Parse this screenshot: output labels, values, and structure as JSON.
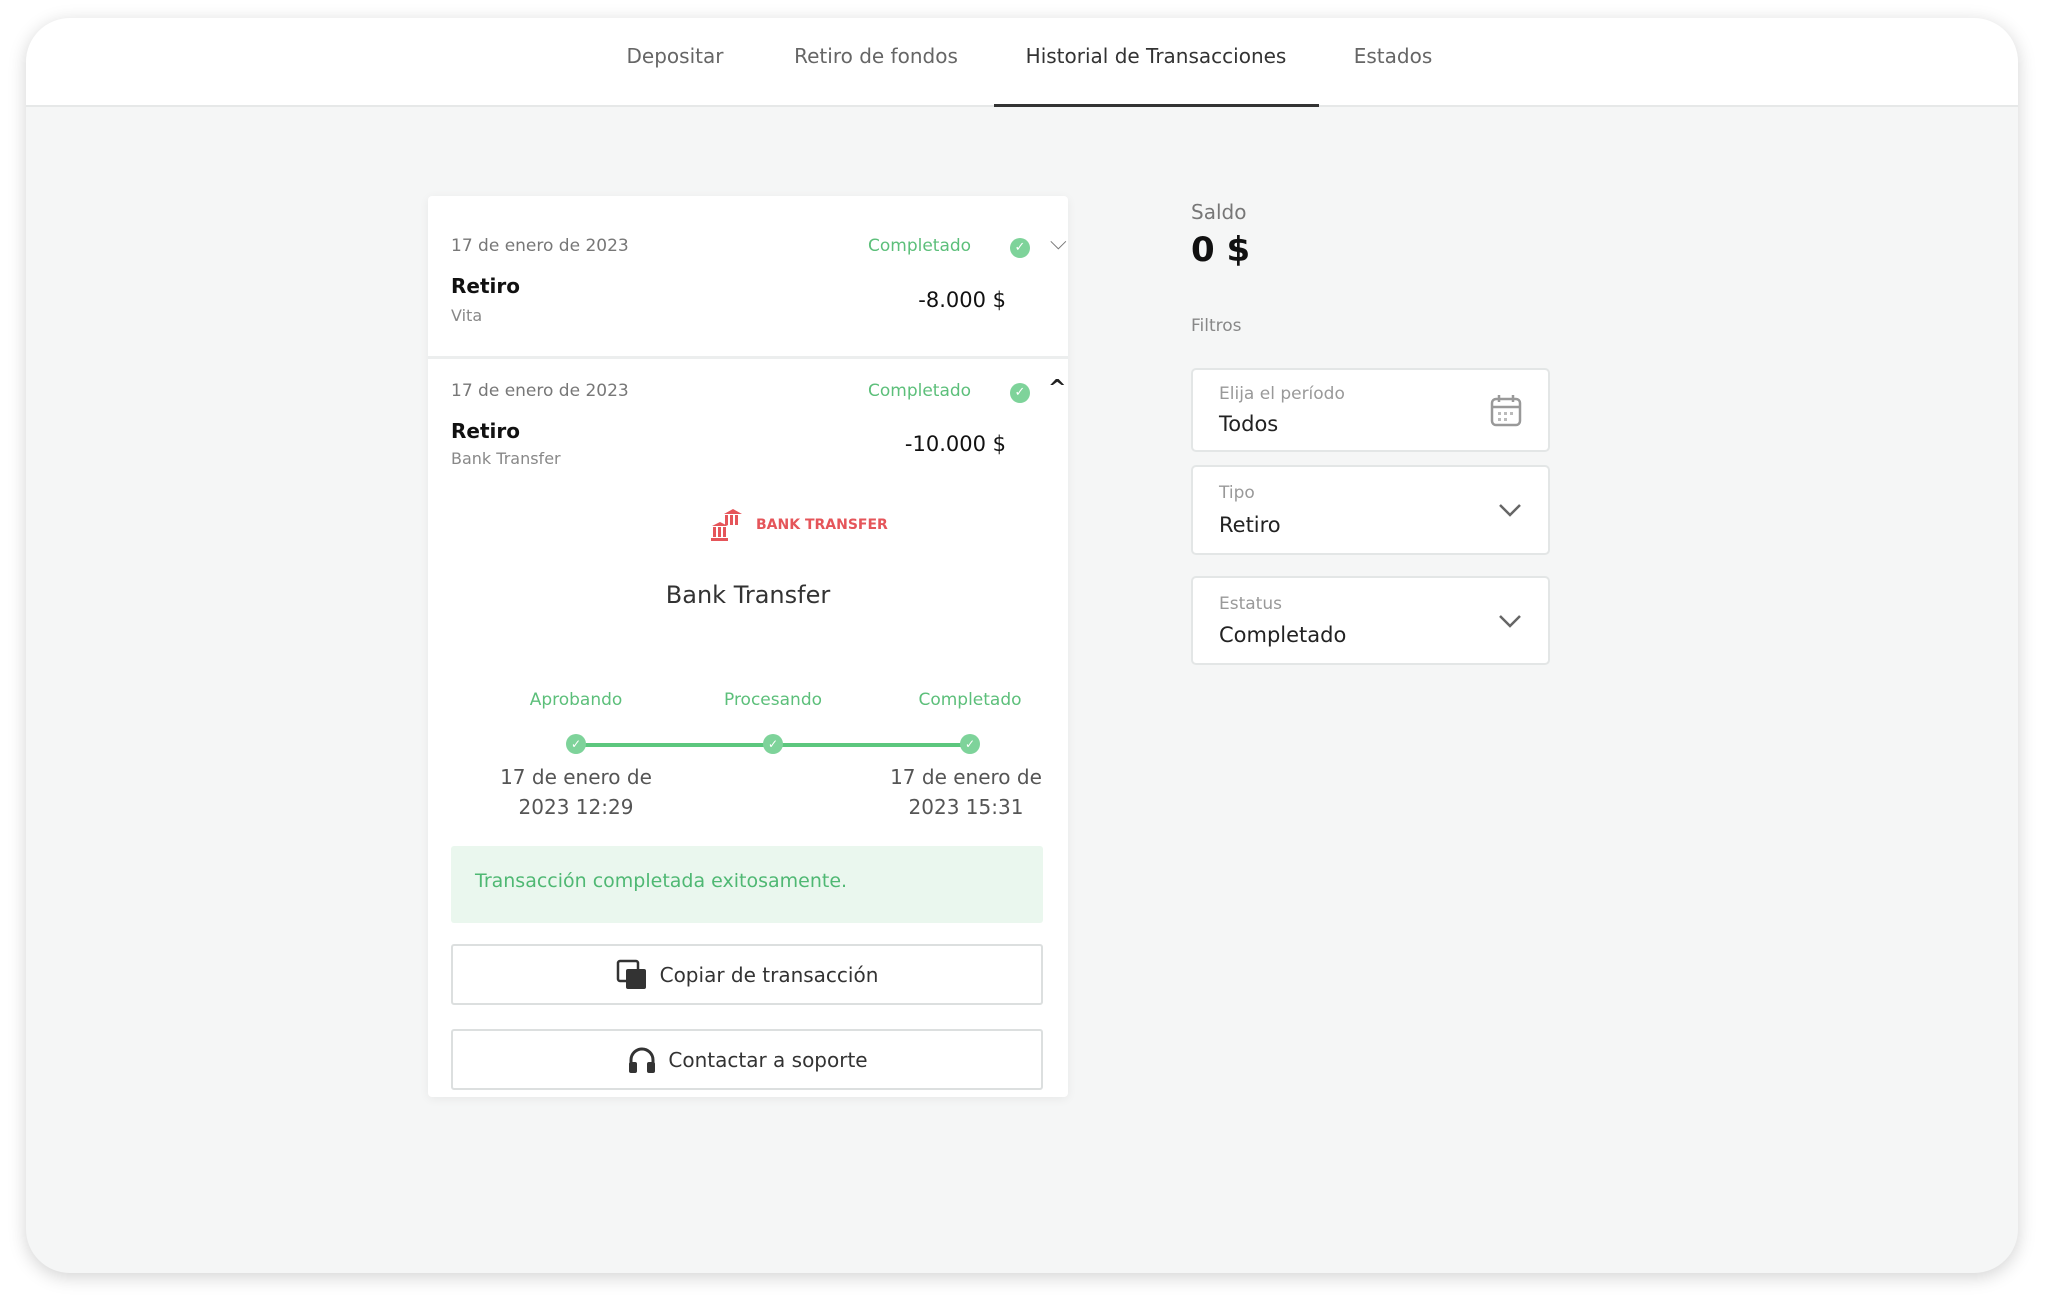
{
  "tabs": [
    {
      "label": "Depositar"
    },
    {
      "label": "Retiro de fondos"
    },
    {
      "label": "Historial de Transacciones",
      "active": true
    },
    {
      "label": "Estados"
    }
  ],
  "transactions": [
    {
      "date": "17 de enero de 2023",
      "status": "Completado",
      "type": "Retiro",
      "method": "Vita",
      "amount": "-8.000 $",
      "expanded": false
    },
    {
      "date": "17 de enero de 2023",
      "status": "Completado",
      "type": "Retiro",
      "method": "Bank Transfer",
      "amount": "-10.000 $",
      "expanded": true,
      "details": {
        "logo_text": "BANK TRANSFER",
        "method_name": "Bank Transfer",
        "progress": [
          {
            "label": "Aprobando",
            "date": "17 de enero de 2023 12:29"
          },
          {
            "label": "Procesando",
            "date": ""
          },
          {
            "label": "Completado",
            "date": "17 de enero de 2023 15:31"
          }
        ],
        "message": "Transacción completada exitosamente.",
        "copy_button": "Copiar de transacción",
        "support_button": "Contactar a soporte"
      }
    }
  ],
  "balance": {
    "label": "Saldo",
    "value": "0 $"
  },
  "filters": {
    "label": "Filtros",
    "period": {
      "label": "Elija el período",
      "value": "Todos"
    },
    "type": {
      "label": "Tipo",
      "value": "Retiro"
    },
    "status": {
      "label": "Estatus",
      "value": "Completado"
    }
  },
  "colors": {
    "success": "#5cbf7a",
    "logo": "#e5555a"
  }
}
